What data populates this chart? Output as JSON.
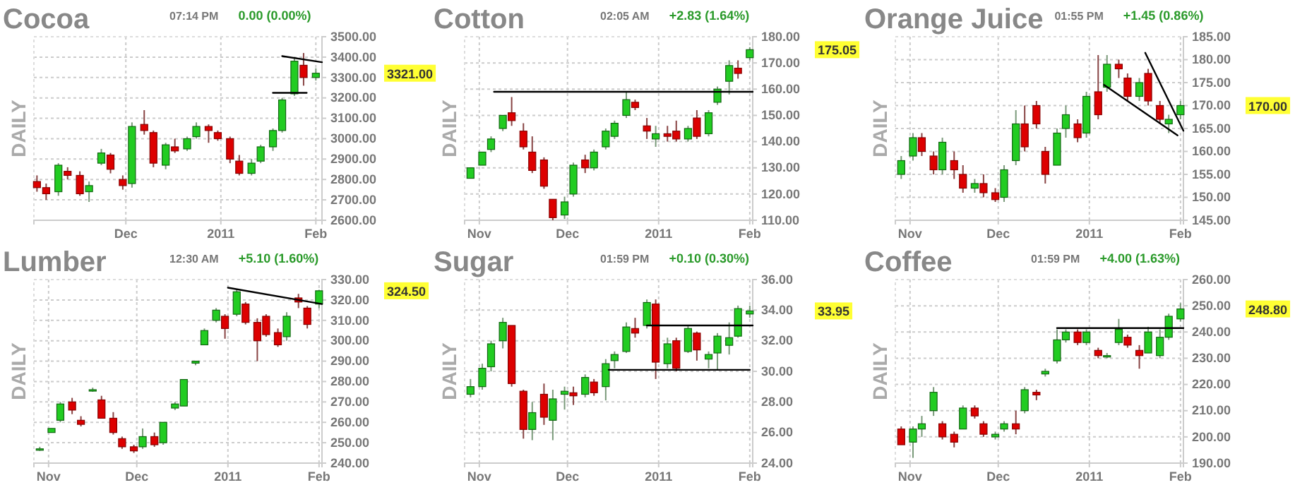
{
  "chart_data": [
    {
      "type": "candlestick",
      "title": "Cocoa",
      "ylabel": "DAILY",
      "grid": true,
      "x": [
        "2010-11-02",
        "2010-11-05",
        "2010-11-09",
        "2010-11-12",
        "2010-11-16",
        "2010-11-19",
        "2010-11-23",
        "2010-11-26",
        "2010-11-30",
        "2010-12-03",
        "2010-12-07",
        "2010-12-10",
        "2010-12-14",
        "2010-12-17",
        "2010-12-21",
        "2010-12-24",
        "2010-12-28",
        "2010-12-31",
        "2011-01-04",
        "2011-01-07",
        "2011-01-11",
        "2011-01-14",
        "2011-01-18",
        "2011-01-21",
        "2011-01-25",
        "2011-01-28",
        "2011-02-01"
      ],
      "ohlc": [
        [
          2790,
          2820,
          2740,
          2760
        ],
        [
          2760,
          2780,
          2700,
          2730
        ],
        [
          2740,
          2880,
          2720,
          2870
        ],
        [
          2840,
          2860,
          2800,
          2820
        ],
        [
          2820,
          2840,
          2720,
          2730
        ],
        [
          2740,
          2790,
          2690,
          2770
        ],
        [
          2880,
          2950,
          2870,
          2930
        ],
        [
          2920,
          2930,
          2830,
          2850
        ],
        [
          2800,
          2820,
          2750,
          2770
        ],
        [
          2780,
          3080,
          2760,
          3060
        ],
        [
          3070,
          3140,
          3020,
          3040
        ],
        [
          3030,
          3040,
          2860,
          2880
        ],
        [
          2870,
          2980,
          2850,
          2970
        ],
        [
          2960,
          3000,
          2930,
          2940
        ],
        [
          2950,
          3010,
          2940,
          3000
        ],
        [
          3010,
          3080,
          3000,
          3060
        ],
        [
          3060,
          3070,
          2980,
          3040
        ],
        [
          3030,
          3040,
          2990,
          3000
        ],
        [
          3000,
          3010,
          2880,
          2900
        ],
        [
          2890,
          2920,
          2820,
          2830
        ],
        [
          2830,
          2900,
          2820,
          2880
        ],
        [
          2890,
          2970,
          2880,
          2960
        ],
        [
          2960,
          3050,
          2940,
          3040
        ],
        [
          3040,
          3200,
          3030,
          3190
        ],
        [
          3220,
          3400,
          3210,
          3380
        ],
        [
          3360,
          3420,
          3260,
          3300
        ],
        [
          3300,
          3345,
          3285,
          3321
        ]
      ],
      "xlim": [
        "2010-11-01",
        "2011-02-03"
      ],
      "xticks": [
        {
          "value": "2010-12-01",
          "label": "Dec"
        },
        {
          "value": "2011-01-01",
          "label": "2011"
        },
        {
          "value": "2011-02-01",
          "label": "Feb"
        }
      ],
      "ylim": [
        2600,
        3500
      ],
      "yticks": [
        {
          "value": 2600,
          "label": "2600.00"
        },
        {
          "value": 2700,
          "label": "2700.00"
        },
        {
          "value": 2800,
          "label": "2800.00"
        },
        {
          "value": 2900,
          "label": "2900.00"
        },
        {
          "value": 3000,
          "label": "3000.00"
        },
        {
          "value": 3100,
          "label": "3100.00"
        },
        {
          "value": 3200,
          "label": "3200.00"
        },
        {
          "value": 3300,
          "label": "3300.00"
        },
        {
          "value": 3400,
          "label": "3400.00"
        },
        {
          "value": 3500,
          "label": "3500.00"
        }
      ],
      "series": [
        {
          "type": "line",
          "color": "#000000",
          "x": [
            "2011-01-21",
            "2011-02-03"
          ],
          "values": [
            3405,
            3375
          ]
        },
        {
          "type": "line",
          "color": "#000000",
          "x": [
            "2011-01-18",
            "2011-01-29"
          ],
          "values": [
            3225,
            3225
          ]
        }
      ],
      "annotations": [
        "07:14 PM",
        "0.00 (0.00%)",
        "3321.00"
      ]
    },
    {
      "type": "candlestick",
      "title": "Cotton",
      "ylabel": "DAILY",
      "grid": true,
      "x": [
        "2010-10-29",
        "2010-11-02",
        "2010-11-05",
        "2010-11-09",
        "2010-11-12",
        "2010-11-16",
        "2010-11-19",
        "2010-11-23",
        "2010-11-26",
        "2010-11-30",
        "2010-12-03",
        "2010-12-07",
        "2010-12-10",
        "2010-12-14",
        "2010-12-17",
        "2010-12-21",
        "2010-12-24",
        "2010-12-28",
        "2010-12-31",
        "2011-01-04",
        "2011-01-07",
        "2011-01-11",
        "2011-01-14",
        "2011-01-18",
        "2011-01-21",
        "2011-01-25",
        "2011-01-28",
        "2011-02-01"
      ],
      "ohlc": [
        [
          126,
          130,
          126,
          130
        ],
        [
          131,
          136,
          131,
          136
        ],
        [
          137,
          142,
          136,
          141
        ],
        [
          145,
          150,
          144,
          150
        ],
        [
          151,
          157,
          146,
          148
        ],
        [
          144,
          147,
          137,
          138
        ],
        [
          136,
          142,
          128,
          129
        ],
        [
          133,
          134,
          122,
          123
        ],
        [
          118,
          118,
          110,
          111
        ],
        [
          112,
          119,
          110.5,
          117
        ],
        [
          120,
          132,
          119,
          131
        ],
        [
          133,
          135,
          128,
          130
        ],
        [
          130,
          137,
          129,
          136
        ],
        [
          138,
          145,
          137,
          144
        ],
        [
          142,
          148,
          141,
          147
        ],
        [
          150,
          159,
          149,
          156
        ],
        [
          155,
          156,
          152,
          153
        ],
        [
          146,
          149,
          141,
          144
        ],
        [
          141,
          146,
          138,
          143
        ],
        [
          143,
          146,
          140,
          142
        ],
        [
          144,
          148,
          140,
          141
        ],
        [
          141,
          146,
          140,
          145
        ],
        [
          149,
          152,
          141,
          142
        ],
        [
          143,
          152,
          142,
          151
        ],
        [
          155,
          161,
          154,
          160
        ],
        [
          163,
          171,
          158,
          169
        ],
        [
          168,
          171,
          164,
          166
        ],
        [
          172,
          176,
          171,
          175.05
        ]
      ],
      "xlim": [
        "2010-10-27",
        "2011-02-02"
      ],
      "xticks": [
        {
          "value": "2010-11-01",
          "label": "Nov"
        },
        {
          "value": "2010-12-01",
          "label": "Dec"
        },
        {
          "value": "2011-01-01",
          "label": "2011"
        },
        {
          "value": "2011-02-01",
          "label": "Feb"
        }
      ],
      "ylim": [
        110,
        180
      ],
      "yticks": [
        {
          "value": 110,
          "label": "110.00"
        },
        {
          "value": 120,
          "label": "120.00"
        },
        {
          "value": 130,
          "label": "130.00"
        },
        {
          "value": 140,
          "label": "140.00"
        },
        {
          "value": 150,
          "label": "150.00"
        },
        {
          "value": 160,
          "label": "160.00"
        },
        {
          "value": 170,
          "label": "170.00"
        },
        {
          "value": 180,
          "label": "180.00"
        }
      ],
      "series": [
        {
          "type": "line",
          "color": "#000000",
          "x": [
            "2010-11-06",
            "2011-02-02"
          ],
          "values": [
            159,
            159
          ]
        }
      ],
      "annotations": [
        "02:05 AM",
        "+2.83 (1.64%)",
        "175.05"
      ]
    },
    {
      "type": "candlestick",
      "title": "Orange Juice",
      "ylabel": "DAILY",
      "grid": true,
      "x": [
        "2010-10-29",
        "2010-11-02",
        "2010-11-05",
        "2010-11-09",
        "2010-11-12",
        "2010-11-16",
        "2010-11-19",
        "2010-11-23",
        "2010-11-26",
        "2010-11-30",
        "2010-12-03",
        "2010-12-07",
        "2010-12-10",
        "2010-12-14",
        "2010-12-17",
        "2010-12-21",
        "2010-12-24",
        "2010-12-28",
        "2010-12-31",
        "2011-01-04",
        "2011-01-07",
        "2011-01-11",
        "2011-01-14",
        "2011-01-18",
        "2011-01-21",
        "2011-01-25",
        "2011-01-28",
        "2011-02-01"
      ],
      "ohlc": [
        [
          155,
          159,
          154,
          158
        ],
        [
          159,
          164,
          158,
          163
        ],
        [
          163,
          164,
          159,
          160
        ],
        [
          159,
          160,
          155,
          156
        ],
        [
          156,
          163,
          155,
          162
        ],
        [
          158,
          160,
          154,
          156
        ],
        [
          155,
          157,
          151,
          152
        ],
        [
          152,
          154,
          151,
          153
        ],
        [
          153,
          155,
          150,
          151
        ],
        [
          151,
          152,
          149,
          149.5
        ],
        [
          150,
          157,
          149,
          156
        ],
        [
          158,
          169,
          157,
          166
        ],
        [
          166,
          170,
          160,
          161
        ],
        [
          170,
          171,
          165,
          166
        ],
        [
          160,
          161,
          153,
          155
        ],
        [
          157,
          165,
          157,
          164
        ],
        [
          165,
          170,
          163,
          168
        ],
        [
          166,
          167,
          162,
          163
        ],
        [
          164,
          173,
          163,
          172
        ],
        [
          173,
          181,
          167,
          168
        ],
        [
          174,
          181,
          173,
          179
        ],
        [
          179,
          180,
          176,
          178
        ],
        [
          176,
          177,
          171,
          172
        ],
        [
          172,
          176,
          171,
          175
        ],
        [
          177,
          178,
          170,
          171
        ],
        [
          170,
          171,
          166,
          167
        ],
        [
          166,
          168,
          164,
          167
        ],
        [
          168,
          171,
          167,
          170
        ]
      ],
      "xlim": [
        "2010-10-27",
        "2011-02-02"
      ],
      "xticks": [
        {
          "value": "2010-11-01",
          "label": "Nov"
        },
        {
          "value": "2010-12-01",
          "label": "Dec"
        },
        {
          "value": "2011-01-01",
          "label": "2011"
        },
        {
          "value": "2011-02-01",
          "label": "Feb"
        }
      ],
      "ylim": [
        145,
        185
      ],
      "yticks": [
        {
          "value": 145,
          "label": "145.00"
        },
        {
          "value": 150,
          "label": "150.00"
        },
        {
          "value": 155,
          "label": "155.00"
        },
        {
          "value": 160,
          "label": "160.00"
        },
        {
          "value": 165,
          "label": "165.00"
        },
        {
          "value": 170,
          "label": "170.00"
        },
        {
          "value": 175,
          "label": "175.00"
        },
        {
          "value": 180,
          "label": "180.00"
        },
        {
          "value": 185,
          "label": "185.00"
        }
      ],
      "series": [
        {
          "type": "line",
          "color": "#000000",
          "x": [
            "2011-01-06",
            "2011-01-31"
          ],
          "values": [
            174.5,
            163.5
          ]
        },
        {
          "type": "line",
          "color": "#000000",
          "x": [
            "2011-01-20",
            "2011-02-02"
          ],
          "values": [
            181.5,
            164.5
          ]
        }
      ],
      "annotations": [
        "01:55 PM",
        "+1.45 (0.86%)",
        "170.00"
      ]
    },
    {
      "type": "candlestick",
      "title": "Lumber",
      "ylabel": "DAILY",
      "grid": true,
      "x": [
        "2010-10-29",
        "2010-11-02",
        "2010-11-05",
        "2010-11-09",
        "2010-11-12",
        "2010-11-16",
        "2010-11-19",
        "2010-11-23",
        "2010-11-26",
        "2010-11-30",
        "2010-12-03",
        "2010-12-07",
        "2010-12-10",
        "2010-12-14",
        "2010-12-17",
        "2010-12-21",
        "2010-12-24",
        "2010-12-28",
        "2010-12-31",
        "2011-01-04",
        "2011-01-07",
        "2011-01-11",
        "2011-01-14",
        "2011-01-18",
        "2011-01-21",
        "2011-01-25",
        "2011-01-28",
        "2011-02-01"
      ],
      "ohlc": [
        [
          247,
          248,
          246,
          247
        ],
        [
          255,
          257,
          255,
          257
        ],
        [
          261,
          270,
          260,
          269
        ],
        [
          270,
          272,
          264,
          266
        ],
        [
          261,
          263,
          258,
          259
        ],
        [
          276,
          277,
          275,
          276
        ],
        [
          271,
          273,
          262,
          262
        ],
        [
          262,
          265,
          254,
          255
        ],
        [
          252,
          253,
          247,
          248
        ],
        [
          248,
          249,
          245,
          246
        ],
        [
          248,
          257,
          247,
          253
        ],
        [
          253,
          255,
          248,
          249
        ],
        [
          250,
          260,
          249,
          260
        ],
        [
          267,
          270,
          266,
          269
        ],
        [
          268,
          281,
          268,
          281
        ],
        [
          289,
          290,
          288,
          290
        ],
        [
          298,
          306,
          298,
          305
        ],
        [
          310,
          316,
          309,
          315
        ],
        [
          312,
          313,
          301,
          306
        ],
        [
          313,
          325,
          312,
          324
        ],
        [
          318,
          319,
          308,
          309
        ],
        [
          309,
          311,
          290,
          300
        ],
        [
          312,
          313,
          302,
          303
        ],
        [
          304,
          306,
          297,
          298
        ],
        [
          302,
          314,
          300,
          312
        ],
        [
          321,
          323,
          316,
          319
        ],
        [
          316,
          317,
          306,
          308
        ],
        [
          318,
          325,
          316,
          324.5
        ]
      ],
      "xlim": [
        "2010-10-27",
        "2011-02-02"
      ],
      "xticks": [
        {
          "value": "2010-11-01",
          "label": "Nov"
        },
        {
          "value": "2010-12-01",
          "label": "Dec"
        },
        {
          "value": "2011-01-01",
          "label": "2011"
        },
        {
          "value": "2011-02-01",
          "label": "Feb"
        }
      ],
      "ylim": [
        240,
        330
      ],
      "yticks": [
        {
          "value": 240,
          "label": "240.00"
        },
        {
          "value": 250,
          "label": "250.00"
        },
        {
          "value": 260,
          "label": "260.00"
        },
        {
          "value": 270,
          "label": "270.00"
        },
        {
          "value": 280,
          "label": "280.00"
        },
        {
          "value": 290,
          "label": "290.00"
        },
        {
          "value": 300,
          "label": "300.00"
        },
        {
          "value": 310,
          "label": "310.00"
        },
        {
          "value": 320,
          "label": "320.00"
        },
        {
          "value": 330,
          "label": "330.00"
        }
      ],
      "series": [
        {
          "type": "line",
          "color": "#000000",
          "x": [
            "2011-01-01",
            "2011-02-02"
          ],
          "values": [
            326,
            318
          ]
        }
      ],
      "annotations": [
        "12:30 AM",
        "+5.10 (1.60%)",
        "324.50"
      ]
    },
    {
      "type": "candlestick",
      "title": "Sugar",
      "ylabel": "DAILY",
      "grid": true,
      "x": [
        "2010-10-29",
        "2010-11-02",
        "2010-11-05",
        "2010-11-09",
        "2010-11-12",
        "2010-11-16",
        "2010-11-19",
        "2010-11-23",
        "2010-11-26",
        "2010-11-30",
        "2010-12-03",
        "2010-12-07",
        "2010-12-10",
        "2010-12-14",
        "2010-12-17",
        "2010-12-21",
        "2010-12-24",
        "2010-12-28",
        "2010-12-31",
        "2011-01-04",
        "2011-01-07",
        "2011-01-11",
        "2011-01-14",
        "2011-01-18",
        "2011-01-21",
        "2011-01-25",
        "2011-01-28",
        "2011-02-01"
      ],
      "ohlc": [
        [
          28.5,
          29.5,
          28.3,
          29
        ],
        [
          29,
          30.5,
          28.8,
          30.2
        ],
        [
          30.3,
          32,
          30,
          31.8
        ],
        [
          32,
          33.5,
          31.5,
          33.2
        ],
        [
          33,
          33,
          29,
          29.2
        ],
        [
          28.7,
          28.8,
          25.6,
          26.2
        ],
        [
          26.2,
          28,
          25.5,
          27.3
        ],
        [
          28.5,
          29.2,
          26.5,
          27
        ],
        [
          26.8,
          28.8,
          25.5,
          28.2
        ],
        [
          28.5,
          29,
          27.5,
          28.7
        ],
        [
          28.6,
          29,
          27.8,
          28.4
        ],
        [
          28.5,
          29.8,
          28.3,
          29.6
        ],
        [
          29.3,
          29.5,
          28.4,
          28.6
        ],
        [
          29,
          30.8,
          28.1,
          30.5
        ],
        [
          30.7,
          31.3,
          30.2,
          31.1
        ],
        [
          31.3,
          33.2,
          31.2,
          32.9
        ],
        [
          32.8,
          33.5,
          32.2,
          32.5
        ],
        [
          33,
          34.7,
          32.8,
          34.5
        ],
        [
          34.4,
          34.7,
          29.5,
          30.6
        ],
        [
          30.5,
          32.2,
          30.2,
          31.8
        ],
        [
          32,
          32.2,
          30,
          30.2
        ],
        [
          31.3,
          33,
          31.2,
          32.8
        ],
        [
          32.5,
          32.6,
          30.7,
          31.4
        ],
        [
          30.8,
          31.3,
          30.2,
          31.1
        ],
        [
          31.2,
          32.5,
          30.1,
          32.3
        ],
        [
          31.7,
          33.2,
          31.1,
          32.2
        ],
        [
          32.3,
          34.3,
          32.2,
          34.1
        ],
        [
          33.75,
          34.3,
          33.5,
          33.95
        ]
      ],
      "xlim": [
        "2010-10-27",
        "2011-02-02"
      ],
      "xticks": [
        {
          "value": "2010-11-01",
          "label": "Nov"
        },
        {
          "value": "2010-12-01",
          "label": "Dec"
        },
        {
          "value": "2011-01-01",
          "label": "2011"
        },
        {
          "value": "2011-02-01",
          "label": "Feb"
        }
      ],
      "ylim": [
        24,
        36
      ],
      "yticks": [
        {
          "value": 24,
          "label": "24.00"
        },
        {
          "value": 26,
          "label": "26.00"
        },
        {
          "value": 28,
          "label": "28.00"
        },
        {
          "value": 30,
          "label": "30.00"
        },
        {
          "value": 32,
          "label": "32.00"
        },
        {
          "value": 34,
          "label": "34.00"
        },
        {
          "value": 36,
          "label": "36.00"
        }
      ],
      "series": [
        {
          "type": "line",
          "color": "#000000",
          "x": [
            "2010-12-28",
            "2011-02-02"
          ],
          "values": [
            33,
            33
          ]
        },
        {
          "type": "line",
          "color": "#000000",
          "x": [
            "2010-12-15",
            "2011-02-01"
          ],
          "values": [
            30.1,
            30.1
          ]
        }
      ],
      "annotations": [
        "01:59 PM",
        "+0.10 (0.30%)",
        "33.95"
      ]
    },
    {
      "type": "candlestick",
      "title": "Coffee",
      "ylabel": "DAILY",
      "grid": true,
      "x": [
        "2010-10-29",
        "2010-11-02",
        "2010-11-05",
        "2010-11-09",
        "2010-11-12",
        "2010-11-16",
        "2010-11-19",
        "2010-11-23",
        "2010-11-26",
        "2010-11-30",
        "2010-12-03",
        "2010-12-07",
        "2010-12-10",
        "2010-12-14",
        "2010-12-17",
        "2010-12-21",
        "2010-12-24",
        "2010-12-28",
        "2010-12-31",
        "2011-01-04",
        "2011-01-07",
        "2011-01-11",
        "2011-01-14",
        "2011-01-18",
        "2011-01-21",
        "2011-01-25",
        "2011-01-28",
        "2011-02-01"
      ],
      "ohlc": [
        [
          203,
          204,
          197,
          197
        ],
        [
          198,
          204,
          192,
          203
        ],
        [
          203,
          208,
          200,
          205
        ],
        [
          210,
          219,
          208,
          217
        ],
        [
          205,
          206,
          199,
          200
        ],
        [
          201,
          202,
          196,
          198
        ],
        [
          203,
          212,
          203,
          211
        ],
        [
          211,
          212,
          207,
          208
        ],
        [
          205,
          206,
          200,
          201
        ],
        [
          200,
          202,
          199,
          201
        ],
        [
          203,
          206,
          202,
          205
        ],
        [
          205,
          210,
          201,
          203
        ],
        [
          210,
          219,
          209,
          218
        ],
        [
          217,
          218,
          214,
          216
        ],
        [
          224,
          226,
          223,
          225
        ],
        [
          229,
          241,
          228,
          237
        ],
        [
          237,
          241,
          236,
          240
        ],
        [
          240,
          241,
          235,
          236
        ],
        [
          236,
          241,
          235,
          240
        ],
        [
          233,
          234,
          230,
          231
        ],
        [
          231,
          232,
          230,
          231
        ],
        [
          236,
          245,
          235,
          241
        ],
        [
          238,
          239,
          234,
          235
        ],
        [
          233,
          235,
          226,
          231
        ],
        [
          232,
          242,
          232,
          240
        ],
        [
          231,
          241,
          230,
          238
        ],
        [
          238,
          247,
          237,
          246
        ],
        [
          245,
          251,
          244,
          248.8
        ]
      ],
      "xlim": [
        "2010-10-27",
        "2011-02-02"
      ],
      "xticks": [
        {
          "value": "2010-11-01",
          "label": "Nov"
        },
        {
          "value": "2010-12-01",
          "label": "Dec"
        },
        {
          "value": "2011-01-01",
          "label": "2011"
        },
        {
          "value": "2011-02-01",
          "label": "Feb"
        }
      ],
      "ylim": [
        190,
        260
      ],
      "yticks": [
        {
          "value": 190,
          "label": "190.00"
        },
        {
          "value": 200,
          "label": "200.00"
        },
        {
          "value": 210,
          "label": "210.00"
        },
        {
          "value": 220,
          "label": "220.00"
        },
        {
          "value": 230,
          "label": "230.00"
        },
        {
          "value": 240,
          "label": "240.00"
        },
        {
          "value": 250,
          "label": "250.00"
        },
        {
          "value": 260,
          "label": "260.00"
        }
      ],
      "series": [
        {
          "type": "line",
          "color": "#000000",
          "x": [
            "2010-12-21",
            "2011-02-02"
          ],
          "values": [
            241.5,
            241.5
          ]
        }
      ],
      "annotations": [
        "01:59 PM",
        "+4.00 (1.63%)",
        "248.80"
      ]
    }
  ]
}
